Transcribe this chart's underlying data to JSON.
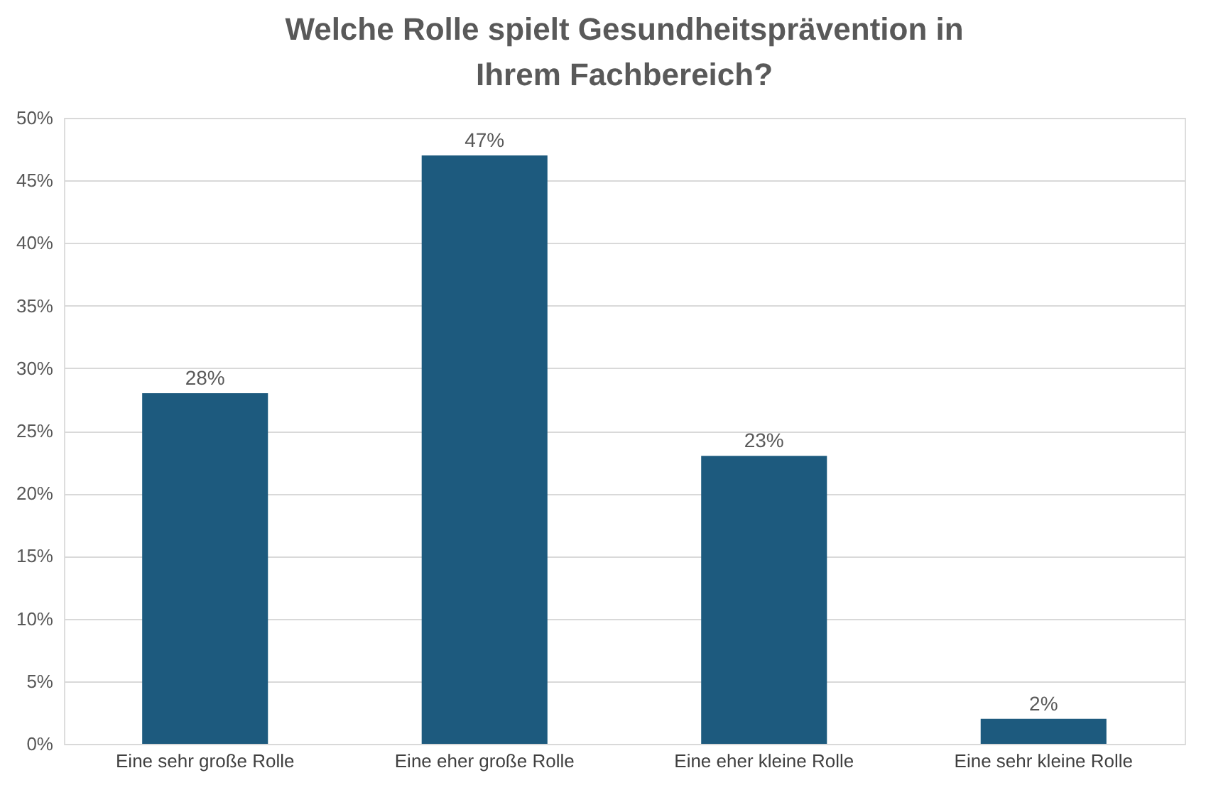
{
  "chart_data": {
    "type": "bar",
    "title": "Welche Rolle spielt Gesundheitsprävention in Ihrem Fachbereich?",
    "categories": [
      "Eine sehr große Rolle",
      "Eine eher große Rolle",
      "Eine eher kleine Rolle",
      "Eine sehr kleine Rolle"
    ],
    "values": [
      28,
      47,
      23,
      2
    ],
    "value_labels": [
      "28%",
      "47%",
      "23%",
      "2%"
    ],
    "color": "#1d5a7e",
    "ylim": [
      0,
      50
    ],
    "yticks": [
      {
        "value": 0,
        "label": "0%"
      },
      {
        "value": 5,
        "label": "5%"
      },
      {
        "value": 10,
        "label": "10%"
      },
      {
        "value": 15,
        "label": "15%"
      },
      {
        "value": 20,
        "label": "20%"
      },
      {
        "value": 25,
        "label": "25%"
      },
      {
        "value": 30,
        "label": "30%"
      },
      {
        "value": 35,
        "label": "35%"
      },
      {
        "value": 40,
        "label": "40%"
      },
      {
        "value": 45,
        "label": "45%"
      },
      {
        "value": 50,
        "label": "50%"
      }
    ],
    "grid": "y"
  }
}
